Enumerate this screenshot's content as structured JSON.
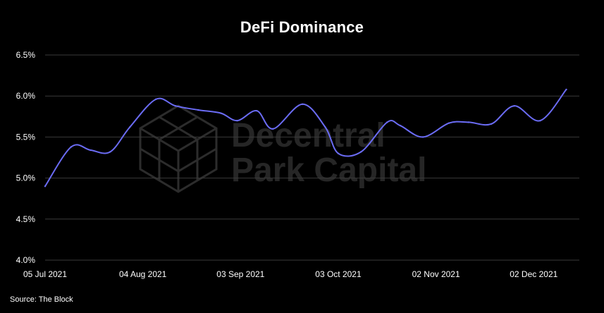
{
  "title": "DeFi Dominance",
  "source": "Source: The Block",
  "watermark": {
    "line1": "Decentral",
    "line2": "Park Capital"
  },
  "colors": {
    "background": "#000000",
    "line": "#6b6cf5",
    "grid": "#3a3a3a",
    "text": "#ffffff",
    "watermark": "#2a2a2a"
  },
  "chart_data": {
    "type": "line",
    "title": "DeFi Dominance",
    "xlabel": "",
    "ylabel": "",
    "x_type": "date",
    "xlim": [
      "2021-07-05",
      "2021-12-16"
    ],
    "ylim": [
      4.0,
      6.5
    ],
    "y_ticks": [
      4.0,
      4.5,
      5.0,
      5.5,
      6.0,
      6.5
    ],
    "y_tick_labels": [
      "4.0%",
      "4.5%",
      "5.0%",
      "5.5%",
      "6.0%",
      "6.5%"
    ],
    "x_ticks": [
      "2021-07-05",
      "2021-08-04",
      "2021-09-03",
      "2021-10-03",
      "2021-11-02",
      "2021-12-02"
    ],
    "x_tick_labels": [
      "05 Jul 2021",
      "04 Aug 2021",
      "03 Sep 2021",
      "03 Oct 2021",
      "02 Nov 2021",
      "02 Dec 2021"
    ],
    "grid": true,
    "legend": "none",
    "series": [
      {
        "points": [
          [
            "2021-07-05",
            4.9
          ],
          [
            "2021-07-13",
            5.38
          ],
          [
            "2021-07-19",
            5.34
          ],
          [
            "2021-07-25",
            5.32
          ],
          [
            "2021-07-31",
            5.62
          ],
          [
            "2021-08-08",
            5.96
          ],
          [
            "2021-08-14",
            5.88
          ],
          [
            "2021-08-21",
            5.83
          ],
          [
            "2021-08-28",
            5.79
          ],
          [
            "2021-09-02",
            5.7
          ],
          [
            "2021-09-08",
            5.82
          ],
          [
            "2021-09-13",
            5.6
          ],
          [
            "2021-09-22",
            5.9
          ],
          [
            "2021-09-29",
            5.62
          ],
          [
            "2021-10-03",
            5.3
          ],
          [
            "2021-10-10",
            5.32
          ],
          [
            "2021-10-18",
            5.68
          ],
          [
            "2021-10-22",
            5.64
          ],
          [
            "2021-10-29",
            5.5
          ],
          [
            "2021-11-06",
            5.67
          ],
          [
            "2021-11-12",
            5.68
          ],
          [
            "2021-11-19",
            5.66
          ],
          [
            "2021-11-26",
            5.88
          ],
          [
            "2021-12-04",
            5.7
          ],
          [
            "2021-12-12",
            6.08
          ]
        ]
      }
    ]
  }
}
